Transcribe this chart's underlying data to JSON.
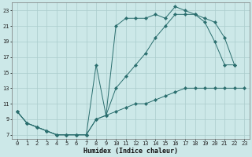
{
  "xlabel": "Humidex (Indice chaleur)",
  "bg_color": "#cce8e8",
  "grid_color": "#aacccc",
  "line_color": "#2a6e6e",
  "xlim": [
    -0.5,
    23.5
  ],
  "ylim": [
    6.5,
    24.0
  ],
  "xticks": [
    0,
    1,
    2,
    3,
    4,
    5,
    6,
    7,
    8,
    9,
    10,
    11,
    12,
    13,
    14,
    15,
    16,
    17,
    18,
    19,
    20,
    21,
    22,
    23
  ],
  "yticks": [
    7,
    9,
    11,
    13,
    15,
    17,
    19,
    21,
    23
  ],
  "line1_x": [
    0,
    1,
    2,
    3,
    4,
    5,
    6,
    7,
    8,
    9,
    10,
    11,
    12,
    13,
    14,
    15,
    16,
    17,
    18,
    19,
    20,
    21,
    22,
    23
  ],
  "line1_y": [
    10,
    8.5,
    8,
    7.5,
    7,
    7,
    7,
    7,
    9,
    9.5,
    10,
    10.5,
    11,
    11,
    11.5,
    12,
    12.5,
    13,
    13,
    13,
    13,
    13,
    13,
    13
  ],
  "line2_x": [
    0,
    1,
    2,
    3,
    4,
    5,
    6,
    7,
    8,
    9,
    10,
    11,
    12,
    13,
    14,
    15,
    16,
    17,
    18,
    19,
    20,
    21,
    22
  ],
  "line2_y": [
    10,
    8.5,
    8,
    7.5,
    7,
    7,
    7,
    7,
    16,
    9.5,
    21,
    22,
    22,
    22,
    22.5,
    22,
    23.5,
    23,
    22.5,
    21.5,
    19,
    16,
    16
  ],
  "line3_x": [
    0,
    1,
    2,
    3,
    4,
    5,
    6,
    7,
    8,
    9,
    10,
    11,
    12,
    13,
    14,
    15,
    16,
    17,
    18,
    19,
    20,
    21,
    22
  ],
  "line3_y": [
    10,
    8.5,
    8,
    7.5,
    7,
    7,
    7,
    7,
    9,
    9.5,
    13,
    14.5,
    16,
    17.5,
    19.5,
    21,
    22.5,
    22.5,
    22.5,
    22,
    21.5,
    19.5,
    16
  ]
}
